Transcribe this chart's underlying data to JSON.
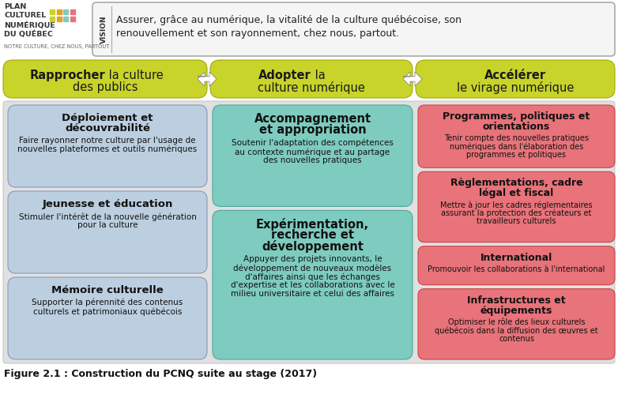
{
  "title": "Figure 2.1 : Construction du PCNQ suite au stage (2017)",
  "logo_lines": [
    "PLAN",
    "CULTUREL",
    "NUMÉRIQUE",
    "DU QUÉBEC"
  ],
  "logo_sub": "NOTRE CULTURE, CHEZ NOUS, PARTOUT",
  "vision_label": "VISION",
  "vision_text1": "Assurer, grâce au numérique, la vitalité de la culture québécoise, son",
  "vision_text2": "renouvellement et son rayonnement, chez nous, partout.",
  "col_headers": [
    {
      "bold": "Rapprocher",
      "normal": " la culture",
      "line2": "des publics"
    },
    {
      "bold": "Adopter",
      "normal": " la",
      "line2": "culture numérique"
    },
    {
      "bold": "Accélérer",
      "normal": "",
      "line2": "le virage numérique"
    }
  ],
  "col1_cells": [
    {
      "title": "Déploiement et\ndécouvrabilité",
      "body": "Faire rayonner notre culture par l'usage de\nnouvelles plateformes et outils numériques",
      "bg": "#bccfe0"
    },
    {
      "title": "Jeunesse et éducation",
      "body": "Stimuler l'intérêt de la nouvelle génération\npour la culture",
      "bg": "#bccfe0"
    },
    {
      "title": "Mémoire culturelle",
      "body": "Supporter la pérennité des contenus\nculturels et patrimoniaux québécois",
      "bg": "#bccfe0"
    }
  ],
  "col2_cells": [
    {
      "title": "Accompagnement\net appropriation",
      "body": "Soutenir l'adaptation des compétences\nau contexte numérique et au partage\ndes nouvelles pratiques",
      "bg": "#7ecbbf"
    },
    {
      "title": "Expérimentation,\nrecherche et\ndéveloppement",
      "body": "Appuyer des projets innovants, le\ndéveloppement de nouveaux modèles\nd'affaires ainsi que les échanges\nd'expertise et les collaborations avec le\nmilieu universitaire et celui des affaires",
      "bg": "#7ecbbf"
    }
  ],
  "col3_cells": [
    {
      "title": "Programmes, politiques et\norientations",
      "body": "Tenir compte des nouvelles pratiques\nnumériques dans l'élaboration des\nprogrammes et politiques",
      "bg": "#e8737a"
    },
    {
      "title": "Règlementations, cadre\nlégal et fiscal",
      "body": "Mettre à jour les cadres réglementaires\nassurant la protection des créateurs et\ntravailleurs culturels",
      "bg": "#e8737a"
    },
    {
      "title": "International",
      "body": "Promouvoir les collaborations à l'international",
      "bg": "#e8737a"
    },
    {
      "title": "Infrastructures et\néquipements",
      "body": "Optimiser le rôle des lieux culturels\nquébécois dans la diffusion des œuvres et\ncontenus",
      "bg": "#e8737a"
    }
  ],
  "header_color": "#c8d42a",
  "header_edge": "#a0a800",
  "col1_edge": "#8899bb",
  "col2_edge": "#4aa8a0",
  "col3_edge": "#cc4444",
  "content_bg": "#e0e0e0",
  "content_edge": "#bbbbbb",
  "vision_bg": "#f5f5f5",
  "vision_edge": "#aaaaaa",
  "bg_white": "#ffffff",
  "dot_colors": [
    "#c8d42a",
    "#c8d42a",
    "#e8a020",
    "#e8a020",
    "#7ecbbf",
    "#7ecbbf",
    "#e8737a",
    "#e8737a"
  ]
}
